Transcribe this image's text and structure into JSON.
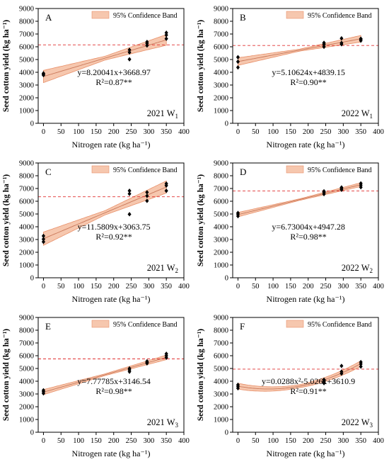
{
  "figure": {
    "legend_label": "95%  Confidence Band",
    "xlabel": "Nitrogen  rate (kg ha⁻¹)",
    "ylabel": "Seed cotton yield (kg ha⁻¹)",
    "colors": {
      "band_fill": "#f6c7ae",
      "band_edge": "#e8906a",
      "fit_line": "#c9785a",
      "ref_line": "#e03030",
      "points": "#000000"
    }
  },
  "chart_data": [
    {
      "id": "A",
      "letter": "A",
      "type": "scatter",
      "year": "2021",
      "treatment": "W",
      "sub": "1",
      "fit": {
        "kind": "linear",
        "a": 8.20041,
        "b": 3668.97
      },
      "equation": "y=8.20041x+3668.97",
      "r2_text": "R²=0.87**",
      "band_half_width": {
        "x0": 480,
        "xmid": 150,
        "xmax": 420
      },
      "ref_y": 6150,
      "points": [
        [
          0,
          3780
        ],
        [
          0,
          3920
        ],
        [
          0,
          3850
        ],
        [
          245,
          5020
        ],
        [
          245,
          5560
        ],
        [
          245,
          5760
        ],
        [
          295,
          6100
        ],
        [
          295,
          6260
        ],
        [
          295,
          6380
        ],
        [
          350,
          6630
        ],
        [
          350,
          6920
        ],
        [
          350,
          7100
        ]
      ],
      "xlim": [
        -15,
        400
      ],
      "ylim": [
        0,
        9000
      ],
      "xticks": [
        0,
        50,
        100,
        150,
        200,
        250,
        300,
        350,
        400
      ],
      "yticks": [
        0,
        1000,
        2000,
        3000,
        4000,
        5000,
        6000,
        7000,
        8000,
        9000
      ],
      "legend_position": "top-right",
      "eq_position": "center"
    },
    {
      "id": "B",
      "letter": "B",
      "type": "scatter",
      "year": "2022",
      "treatment": "W",
      "sub": "1",
      "fit": {
        "kind": "linear",
        "a": 5.10624,
        "b": 4839.15
      },
      "equation": "y=5.10624x+4839.15",
      "r2_text": "R²=0.90**",
      "band_half_width": {
        "x0": 300,
        "xmid": 80,
        "xmax": 260
      },
      "ref_y": 6100,
      "points": [
        [
          0,
          4380
        ],
        [
          0,
          4830
        ],
        [
          0,
          5180
        ],
        [
          245,
          6000
        ],
        [
          245,
          6190
        ],
        [
          245,
          6310
        ],
        [
          295,
          6200
        ],
        [
          295,
          6300
        ],
        [
          295,
          6660
        ],
        [
          350,
          6480
        ],
        [
          350,
          6580
        ],
        [
          350,
          6630
        ]
      ],
      "xlim": [
        -15,
        400
      ],
      "ylim": [
        0,
        9000
      ],
      "xticks": [
        0,
        50,
        100,
        150,
        200,
        250,
        300,
        350,
        400
      ],
      "yticks": [
        0,
        1000,
        2000,
        3000,
        4000,
        5000,
        6000,
        7000,
        8000,
        9000
      ],
      "legend_position": "top-right",
      "eq_position": "center"
    },
    {
      "id": "C",
      "letter": "C",
      "type": "scatter",
      "year": "2021",
      "treatment": "W",
      "sub": "2",
      "fit": {
        "kind": "linear",
        "a": 11.5809,
        "b": 3063.75
      },
      "equation": "y=11.5809x+3063.75",
      "r2_text": "R²=0.92**",
      "band_half_width": {
        "x0": 520,
        "xmid": 170,
        "xmax": 480
      },
      "ref_y": 6350,
      "points": [
        [
          0,
          2820
        ],
        [
          0,
          3030
        ],
        [
          0,
          3280
        ],
        [
          245,
          4980
        ],
        [
          245,
          6580
        ],
        [
          245,
          6820
        ],
        [
          295,
          6030
        ],
        [
          295,
          6420
        ],
        [
          295,
          6700
        ],
        [
          350,
          6820
        ],
        [
          350,
          7230
        ],
        [
          350,
          7380
        ]
      ],
      "xlim": [
        -15,
        400
      ],
      "ylim": [
        0,
        9000
      ],
      "xticks": [
        0,
        50,
        100,
        150,
        200,
        250,
        300,
        350,
        400
      ],
      "yticks": [
        0,
        1000,
        2000,
        3000,
        4000,
        5000,
        6000,
        7000,
        8000,
        9000
      ],
      "legend_position": "top-right",
      "eq_position": "center"
    },
    {
      "id": "D",
      "letter": "D",
      "type": "scatter",
      "year": "2022",
      "treatment": "W",
      "sub": "2",
      "fit": {
        "kind": "linear",
        "a": 6.73004,
        "b": 4947.28
      },
      "equation": "y=6.73004x+4947.28",
      "r2_text": "R²=0.98**",
      "band_half_width": {
        "x0": 170,
        "xmid": 60,
        "xmax": 150
      },
      "ref_y": 6800,
      "points": [
        [
          0,
          4830
        ],
        [
          0,
          4980
        ],
        [
          0,
          5080
        ],
        [
          245,
          6560
        ],
        [
          245,
          6700
        ],
        [
          245,
          6780
        ],
        [
          295,
          6900
        ],
        [
          295,
          7000
        ],
        [
          295,
          7080
        ],
        [
          350,
          7100
        ],
        [
          350,
          7260
        ],
        [
          350,
          7400
        ]
      ],
      "xlim": [
        -15,
        400
      ],
      "ylim": [
        0,
        9000
      ],
      "xticks": [
        0,
        50,
        100,
        150,
        200,
        250,
        300,
        350,
        400
      ],
      "yticks": [
        0,
        1000,
        2000,
        3000,
        4000,
        5000,
        6000,
        7000,
        8000,
        9000
      ],
      "legend_position": "top-right",
      "eq_position": "center"
    },
    {
      "id": "E",
      "letter": "E",
      "type": "scatter",
      "year": "2021",
      "treatment": "W",
      "sub": "3",
      "fit": {
        "kind": "linear",
        "a": 7.77785,
        "b": 3146.54
      },
      "equation": "y=7.77785x+3146.54",
      "r2_text": "R²=0.98**",
      "band_half_width": {
        "x0": 200,
        "xmid": 70,
        "xmax": 180
      },
      "ref_y": 5750,
      "points": [
        [
          0,
          3050
        ],
        [
          0,
          3180
        ],
        [
          0,
          3290
        ],
        [
          245,
          4750
        ],
        [
          245,
          4880
        ],
        [
          245,
          5000
        ],
        [
          295,
          5400
        ],
        [
          295,
          5480
        ],
        [
          295,
          5560
        ],
        [
          350,
          5850
        ],
        [
          350,
          6000
        ],
        [
          350,
          6150
        ]
      ],
      "xlim": [
        -15,
        400
      ],
      "ylim": [
        0,
        9000
      ],
      "xticks": [
        0,
        50,
        100,
        150,
        200,
        250,
        300,
        350,
        400
      ],
      "yticks": [
        0,
        1000,
        2000,
        3000,
        4000,
        5000,
        6000,
        7000,
        8000,
        9000
      ],
      "legend_position": "top-right",
      "eq_position": "center"
    },
    {
      "id": "F",
      "letter": "F",
      "type": "scatter",
      "year": "2022",
      "treatment": "W",
      "sub": "3",
      "fit": {
        "kind": "quadratic",
        "a": 0.0288,
        "b": -5.026,
        "c": 3610.9
      },
      "equation": "y=0.0288x²-5.026x+3610.9",
      "r2_text": "R²=0.91**",
      "band_half_width": {
        "x0": 230,
        "xmid": 120,
        "xmax": 220
      },
      "ref_y": 4950,
      "points": [
        [
          0,
          3450
        ],
        [
          0,
          3600
        ],
        [
          0,
          3720
        ],
        [
          245,
          3850
        ],
        [
          245,
          4000
        ],
        [
          245,
          4120
        ],
        [
          295,
          4600
        ],
        [
          295,
          4750
        ],
        [
          295,
          5200
        ],
        [
          350,
          5150
        ],
        [
          350,
          5350
        ],
        [
          350,
          5500
        ]
      ],
      "xlim": [
        -15,
        400
      ],
      "ylim": [
        0,
        9000
      ],
      "xticks": [
        0,
        50,
        100,
        150,
        200,
        250,
        300,
        350,
        400
      ],
      "yticks": [
        0,
        1000,
        2000,
        3000,
        4000,
        5000,
        6000,
        7000,
        8000,
        9000
      ],
      "legend_position": "top-right",
      "eq_position": "center"
    }
  ]
}
